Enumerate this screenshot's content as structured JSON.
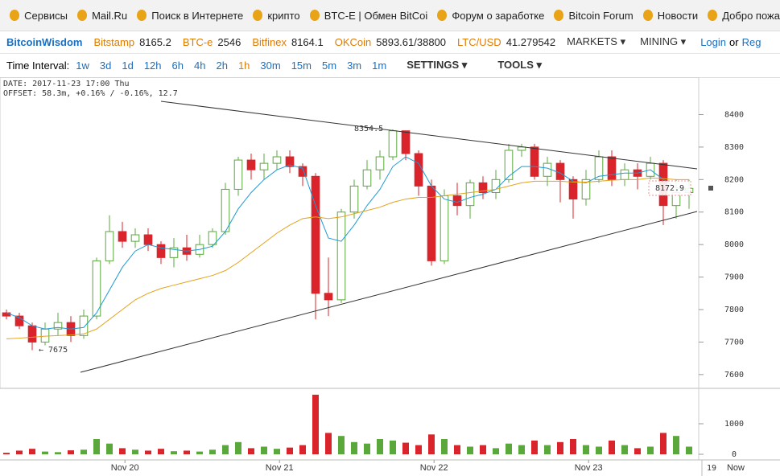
{
  "bookmarks": [
    "Сервисы",
    "Mail.Ru",
    "Поиск в Интернете",
    "крипто",
    "BTC-E | Обмен BitCoi",
    "Форум о заработке",
    "Bitcoin Forum",
    "Новости",
    "Добро пожа"
  ],
  "header": {
    "brand": "BitcoinWisdom",
    "tickers": [
      {
        "name": "Bitstamp",
        "price": "8165.2"
      },
      {
        "name": "BTC-e",
        "price": "2546"
      },
      {
        "name": "Bitfinex",
        "price": "8164.1"
      },
      {
        "name": "OKCoin",
        "price": "5893.61/38800"
      },
      {
        "name": "LTC/USD",
        "price": "41.279542"
      }
    ],
    "menus": [
      "MARKETS ▾",
      "MINING ▾"
    ],
    "login": "Login",
    "or": "or",
    "register": "Reg"
  },
  "toolbar": {
    "label": "Time Interval:",
    "intervals": [
      "1w",
      "3d",
      "1d",
      "12h",
      "6h",
      "4h",
      "2h",
      "1h",
      "30m",
      "15m",
      "5m",
      "3m",
      "1m"
    ],
    "active_interval": 7,
    "settings": "SETTINGS ▾",
    "tools": "TOOLS ▾"
  },
  "chart_data": {
    "type": "candlestick",
    "info": [
      "DATE: 2017-11-23 17:00 Thu",
      "OFFSET: 58.3m, +0.16% / -0.16%, 12.7"
    ],
    "annotations": {
      "high": "8354.5",
      "low": "← 7675",
      "last": "8172.9"
    },
    "up_color": "#5aa83c",
    "down_color": "#d8242a",
    "open": [
      7790,
      7780,
      7750,
      7700,
      7740,
      7760,
      7720,
      7780,
      7950,
      8040,
      8010,
      8030,
      8000,
      7960,
      7990,
      7970,
      8000,
      8040,
      8170,
      8260,
      8230,
      8250,
      8270,
      8240,
      8210,
      7850,
      7830,
      8100,
      8180,
      8230,
      8270,
      8350,
      8280,
      8180,
      7950,
      8150,
      8120,
      8190,
      8160,
      8200,
      8290,
      8300,
      8210,
      8250,
      8200,
      8140,
      8200,
      8270,
      8200,
      8230,
      8210,
      8250,
      8120,
      8160
    ],
    "close": [
      7780,
      7750,
      7700,
      7740,
      7760,
      7720,
      7780,
      7950,
      8040,
      8010,
      8030,
      8000,
      7960,
      7990,
      7970,
      8000,
      8040,
      8170,
      8260,
      8230,
      8250,
      8270,
      8240,
      8210,
      7850,
      7830,
      8100,
      8180,
      8230,
      8270,
      8350,
      8280,
      8180,
      7950,
      8150,
      8120,
      8190,
      8160,
      8200,
      8290,
      8300,
      8210,
      8250,
      8200,
      8140,
      8200,
      8270,
      8200,
      8230,
      8210,
      8250,
      8120,
      8160,
      8172.9
    ],
    "high": [
      7800,
      7790,
      7760,
      7760,
      7790,
      7780,
      7800,
      7960,
      8090,
      8070,
      8050,
      8050,
      8010,
      8020,
      8030,
      8030,
      8050,
      8190,
      8270,
      8280,
      8280,
      8290,
      8290,
      8250,
      8220,
      7960,
      8110,
      8200,
      8260,
      8290,
      8354.5,
      8350,
      8290,
      8200,
      8170,
      8190,
      8200,
      8210,
      8230,
      8310,
      8310,
      8310,
      8270,
      8260,
      8210,
      8230,
      8290,
      8290,
      8250,
      8250,
      8270,
      8260,
      8200,
      8200
    ],
    "low": [
      7770,
      7740,
      7675,
      7690,
      7720,
      7700,
      7710,
      7770,
      7940,
      7990,
      7990,
      7980,
      7940,
      7930,
      7950,
      7960,
      7990,
      8030,
      8150,
      8200,
      8200,
      8230,
      8220,
      8180,
      7770,
      7780,
      7820,
      8080,
      8170,
      8200,
      8260,
      8260,
      8150,
      7935,
      7940,
      8090,
      8080,
      8140,
      8140,
      8190,
      8270,
      8200,
      8180,
      8130,
      8080,
      8120,
      8190,
      8180,
      8180,
      8170,
      8200,
      8060,
      8080,
      8110
    ],
    "volume": [
      50,
      120,
      180,
      90,
      70,
      130,
      150,
      500,
      350,
      200,
      150,
      120,
      180,
      100,
      120,
      90,
      150,
      300,
      400,
      200,
      250,
      180,
      220,
      300,
      1950,
      700,
      600,
      400,
      350,
      500,
      450,
      380,
      300,
      650,
      500,
      300,
      250,
      300,
      200,
      350,
      300,
      450,
      300,
      400,
      500,
      300,
      250,
      450,
      300,
      200,
      250,
      700,
      600,
      250
    ],
    "lines": [
      {
        "color": "#1f9ad6",
        "values": [
          7790,
          7775,
          7750,
          7740,
          7745,
          7740,
          7745,
          7790,
          7860,
          7930,
          7980,
          8000,
          7990,
          7985,
          7980,
          7985,
          7995,
          8040,
          8110,
          8160,
          8200,
          8230,
          8245,
          8235,
          8120,
          8020,
          8010,
          8060,
          8120,
          8170,
          8240,
          8270,
          8250,
          8180,
          8140,
          8130,
          8145,
          8155,
          8170,
          8210,
          8240,
          8240,
          8235,
          8220,
          8195,
          8190,
          8210,
          8215,
          8220,
          8220,
          8230,
          8200,
          8175,
          8165
        ]
      },
      {
        "color": "#e3a21a",
        "values": [
          7710,
          7712,
          7715,
          7718,
          7720,
          7722,
          7725,
          7740,
          7770,
          7800,
          7830,
          7850,
          7865,
          7875,
          7885,
          7895,
          7905,
          7920,
          7945,
          7975,
          8005,
          8035,
          8060,
          8080,
          8085,
          8080,
          8085,
          8095,
          8105,
          8115,
          8130,
          8140,
          8145,
          8145,
          8150,
          8155,
          8160,
          8165,
          8170,
          8180,
          8190,
          8195,
          8195,
          8195,
          8192,
          8192,
          8195,
          8198,
          8200,
          8200,
          8205,
          8203,
          8200,
          8200
        ]
      }
    ],
    "xlim": [
      0,
      54
    ],
    "xticks": [
      {
        "value": 9.7,
        "label": "Nov 20"
      },
      {
        "value": 21.7,
        "label": "Nov 21"
      },
      {
        "value": 33.7,
        "label": "Nov 22"
      },
      {
        "value": 45.7,
        "label": "Nov 23"
      }
    ],
    "ylim": [
      7560,
      8515
    ],
    "yticks": [
      7600,
      7700,
      7800,
      7900,
      8000,
      8100,
      8200,
      8300,
      8400
    ],
    "vlim": [
      0,
      2000
    ],
    "vticks": [
      0,
      1000
    ],
    "corner_labels": [
      "19",
      "Now"
    ]
  }
}
